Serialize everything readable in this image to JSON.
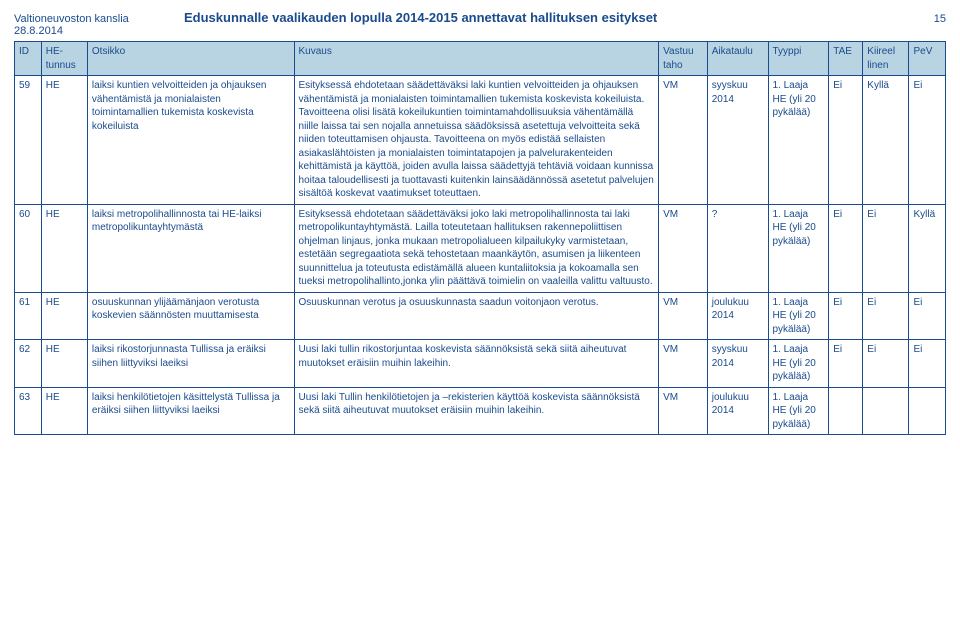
{
  "header": {
    "org": "Valtioneuvoston kanslia",
    "date": "28.8.2014",
    "title": "Eduskunnalle vaalikauden lopulla 2014-2015 annettavat hallituksen esitykset",
    "pageNumber": "15"
  },
  "columns": {
    "id": "ID",
    "hetunnus": "HE-tunnus",
    "otsikko": "Otsikko",
    "kuvaus": "Kuvaus",
    "vastuu": "Vastuu taho",
    "aikataulu": "Aikataulu",
    "tyyppi": "Tyyppi",
    "tae": "TAE",
    "kiireel": "Kiireel linen",
    "pev": "PeV"
  },
  "rows": [
    {
      "id": "59",
      "hetunnus": "HE",
      "otsikko": "laiksi kuntien velvoitteiden ja ohjauksen vähentämistä ja monialaisten toimintamallien tukemista koskevista kokeiluista",
      "kuvaus": "Esityksessä ehdotetaan säädettäväksi laki kuntien velvoitteiden ja ohjauksen vähentämistä ja monialaisten toimintamallien tukemista koskevista kokeiluista. Tavoitteena olisi lisätä kokeilukuntien toimintamahdollisuuksia vähentämällä niille laissa tai sen nojalla annetuissa säädöksissä asetettuja velvoitteita sekä niiden toteuttamisen ohjausta. Tavoitteena on myös edistää sellaisten asiakaslähtöisten ja monialaisten toimintatapojen ja palvelurakenteiden kehittämistä ja käyttöä, joiden avulla laissa säädettyjä tehtäviä voidaan kunnissa hoitaa taloudellisesti ja tuottavasti kuitenkin lainsäädännössä asetetut palvelujen sisältöä koskevat vaatimukset toteuttaen.",
      "vastuu": "VM",
      "aikataulu": "syyskuu 2014",
      "tyyppi": "1. Laaja HE (yli 20 pykälää)",
      "tae": "Ei",
      "kiireel": "Kyllä",
      "pev": "Ei"
    },
    {
      "id": "60",
      "hetunnus": "HE",
      "otsikko": "laiksi metropolihallinnosta tai HE-laiksi metropolikuntayhtymästä",
      "kuvaus": "Esityksessä ehdotetaan säädettäväksi joko laki metropolihallinnosta tai laki metropolikuntayhtymästä. Lailla toteutetaan hallituksen rakennepoliittisen ohjelman linjaus, jonka mukaan metropolialueen kilpailukyky varmistetaan, estetään segregaatiota sekä tehostetaan maankäytön, asumisen ja liikenteen suunnittelua ja toteutusta edistämällä alueen kuntaliitoksia ja kokoamalla sen tueksi metropolihallinto,jonka ylin päättävä toimielin on vaaleilla valittu valtuusto.",
      "vastuu": "VM",
      "aikataulu": "?",
      "tyyppi": "1. Laaja HE (yli 20 pykälää)",
      "tae": "Ei",
      "kiireel": "Ei",
      "pev": "Kyllä"
    },
    {
      "id": "61",
      "hetunnus": "HE",
      "otsikko": "osuuskunnan ylijäämänjaon verotusta koskevien säännösten muuttamisesta",
      "kuvaus": "Osuuskunnan verotus ja osuuskunnasta saadun voitonjaon verotus.",
      "vastuu": "VM",
      "aikataulu": "joulukuu 2014",
      "tyyppi": "1. Laaja HE (yli 20 pykälää)",
      "tae": "Ei",
      "kiireel": "Ei",
      "pev": "Ei"
    },
    {
      "id": "62",
      "hetunnus": "HE",
      "otsikko": "laiksi rikostorjunnasta Tullissa ja eräiksi siihen liittyviksi laeiksi",
      "kuvaus": "Uusi laki tullin rikostorjuntaa koskevista säännöksistä sekä siitä aiheutuvat muutokset eräisiin muihin lakeihin.",
      "vastuu": "VM",
      "aikataulu": "syyskuu 2014",
      "tyyppi": "1. Laaja HE (yli 20 pykälää)",
      "tae": "Ei",
      "kiireel": "Ei",
      "pev": "Ei"
    },
    {
      "id": "63",
      "hetunnus": "HE",
      "otsikko": "laiksi henkilötietojen käsittelystä Tullissa ja eräiksi siihen liittyviksi laeiksi",
      "kuvaus": "Uusi laki Tullin henkilötietojen ja –rekisterien käyttöä koskevista säännöksistä sekä siitä aiheutuvat muutokset eräisiin muihin lakeihin.",
      "vastuu": "VM",
      "aikataulu": "joulukuu 2014",
      "tyyppi": "1. Laaja HE (yli 20 pykälää)",
      "tae": "",
      "kiireel": "",
      "pev": ""
    }
  ]
}
